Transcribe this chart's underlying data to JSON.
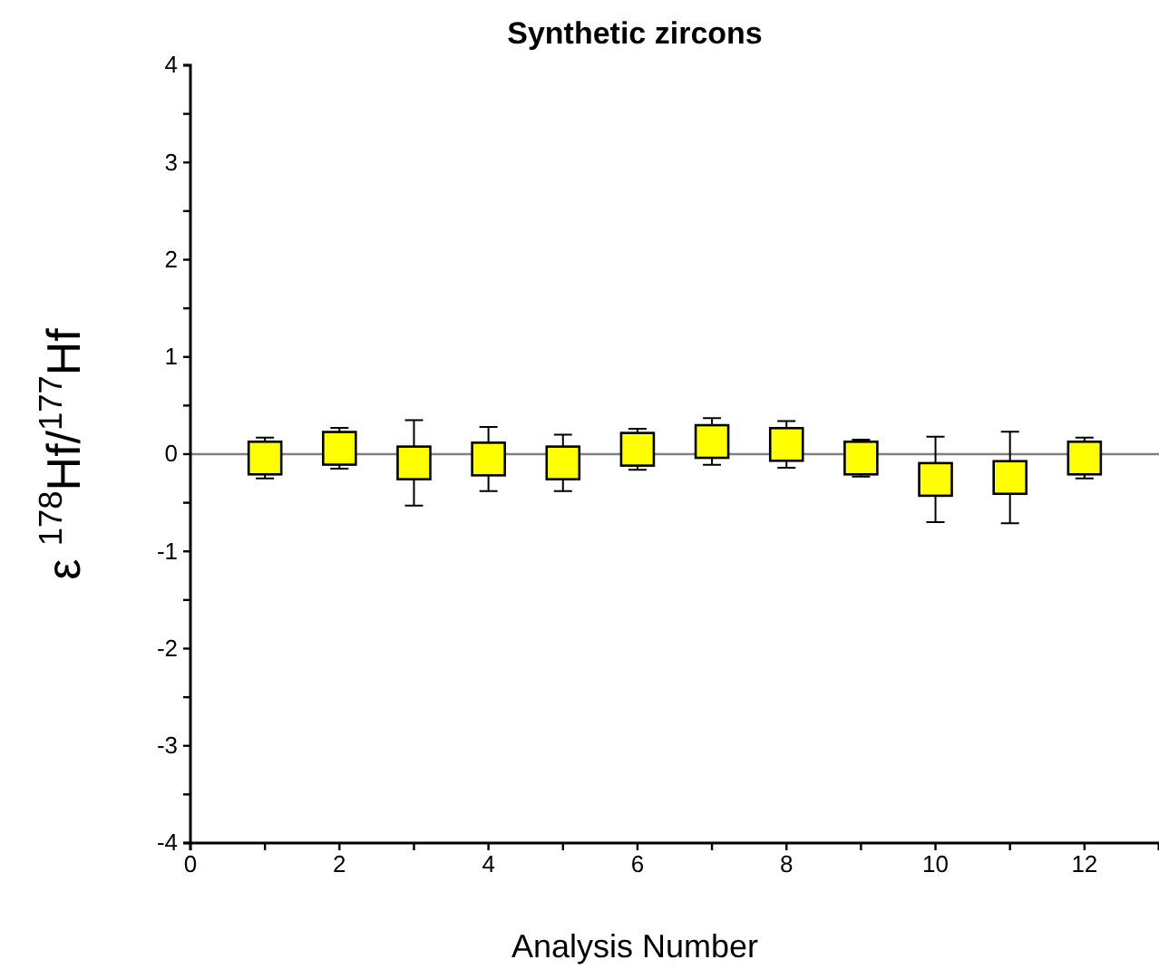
{
  "chart_data": {
    "type": "scatter",
    "title": "Synthetic zircons",
    "xlabel": "Analysis Number",
    "ylabel": "ε $^{178}$Hf/$^{177}$Hf",
    "x": [
      1,
      2,
      3,
      4,
      5,
      6,
      7,
      8,
      9,
      10,
      11,
      12
    ],
    "values": [
      -0.04,
      0.06,
      -0.09,
      -0.05,
      -0.09,
      0.05,
      0.13,
      0.1,
      -0.04,
      -0.26,
      -0.24,
      -0.04
    ],
    "errors": [
      0.21,
      0.21,
      0.44,
      0.33,
      0.29,
      0.21,
      0.24,
      0.24,
      0.19,
      0.44,
      0.47,
      0.21
    ],
    "color": "#ffff00",
    "marker": "square",
    "xlim": [
      0,
      13
    ],
    "xticks": [
      0,
      {
        "value": 1,
        "label": null
      },
      2,
      {
        "value": 3,
        "label": null
      },
      4,
      {
        "value": 5,
        "label": null
      },
      6,
      {
        "value": 7,
        "label": null
      },
      8,
      {
        "value": 9,
        "label": null
      },
      10,
      {
        "value": 11,
        "label": null
      },
      12
    ],
    "ylim": [
      -4,
      4
    ],
    "yticks": [
      -4,
      {
        "value": -3.5,
        "label": null
      },
      -3,
      {
        "value": -2.5,
        "label": null
      },
      -2,
      {
        "value": -1.5,
        "label": null
      },
      -1,
      {
        "value": -0.5,
        "label": null
      },
      0,
      {
        "value": 0.5,
        "label": null
      },
      1,
      {
        "value": 1.5,
        "label": null
      },
      2,
      {
        "value": 2.5,
        "label": null
      },
      3,
      {
        "value": 3.5,
        "label": null
      },
      4
    ],
    "ref_lines": [
      {
        "axis": "y",
        "value": 0,
        "color": "#808080"
      }
    ]
  }
}
